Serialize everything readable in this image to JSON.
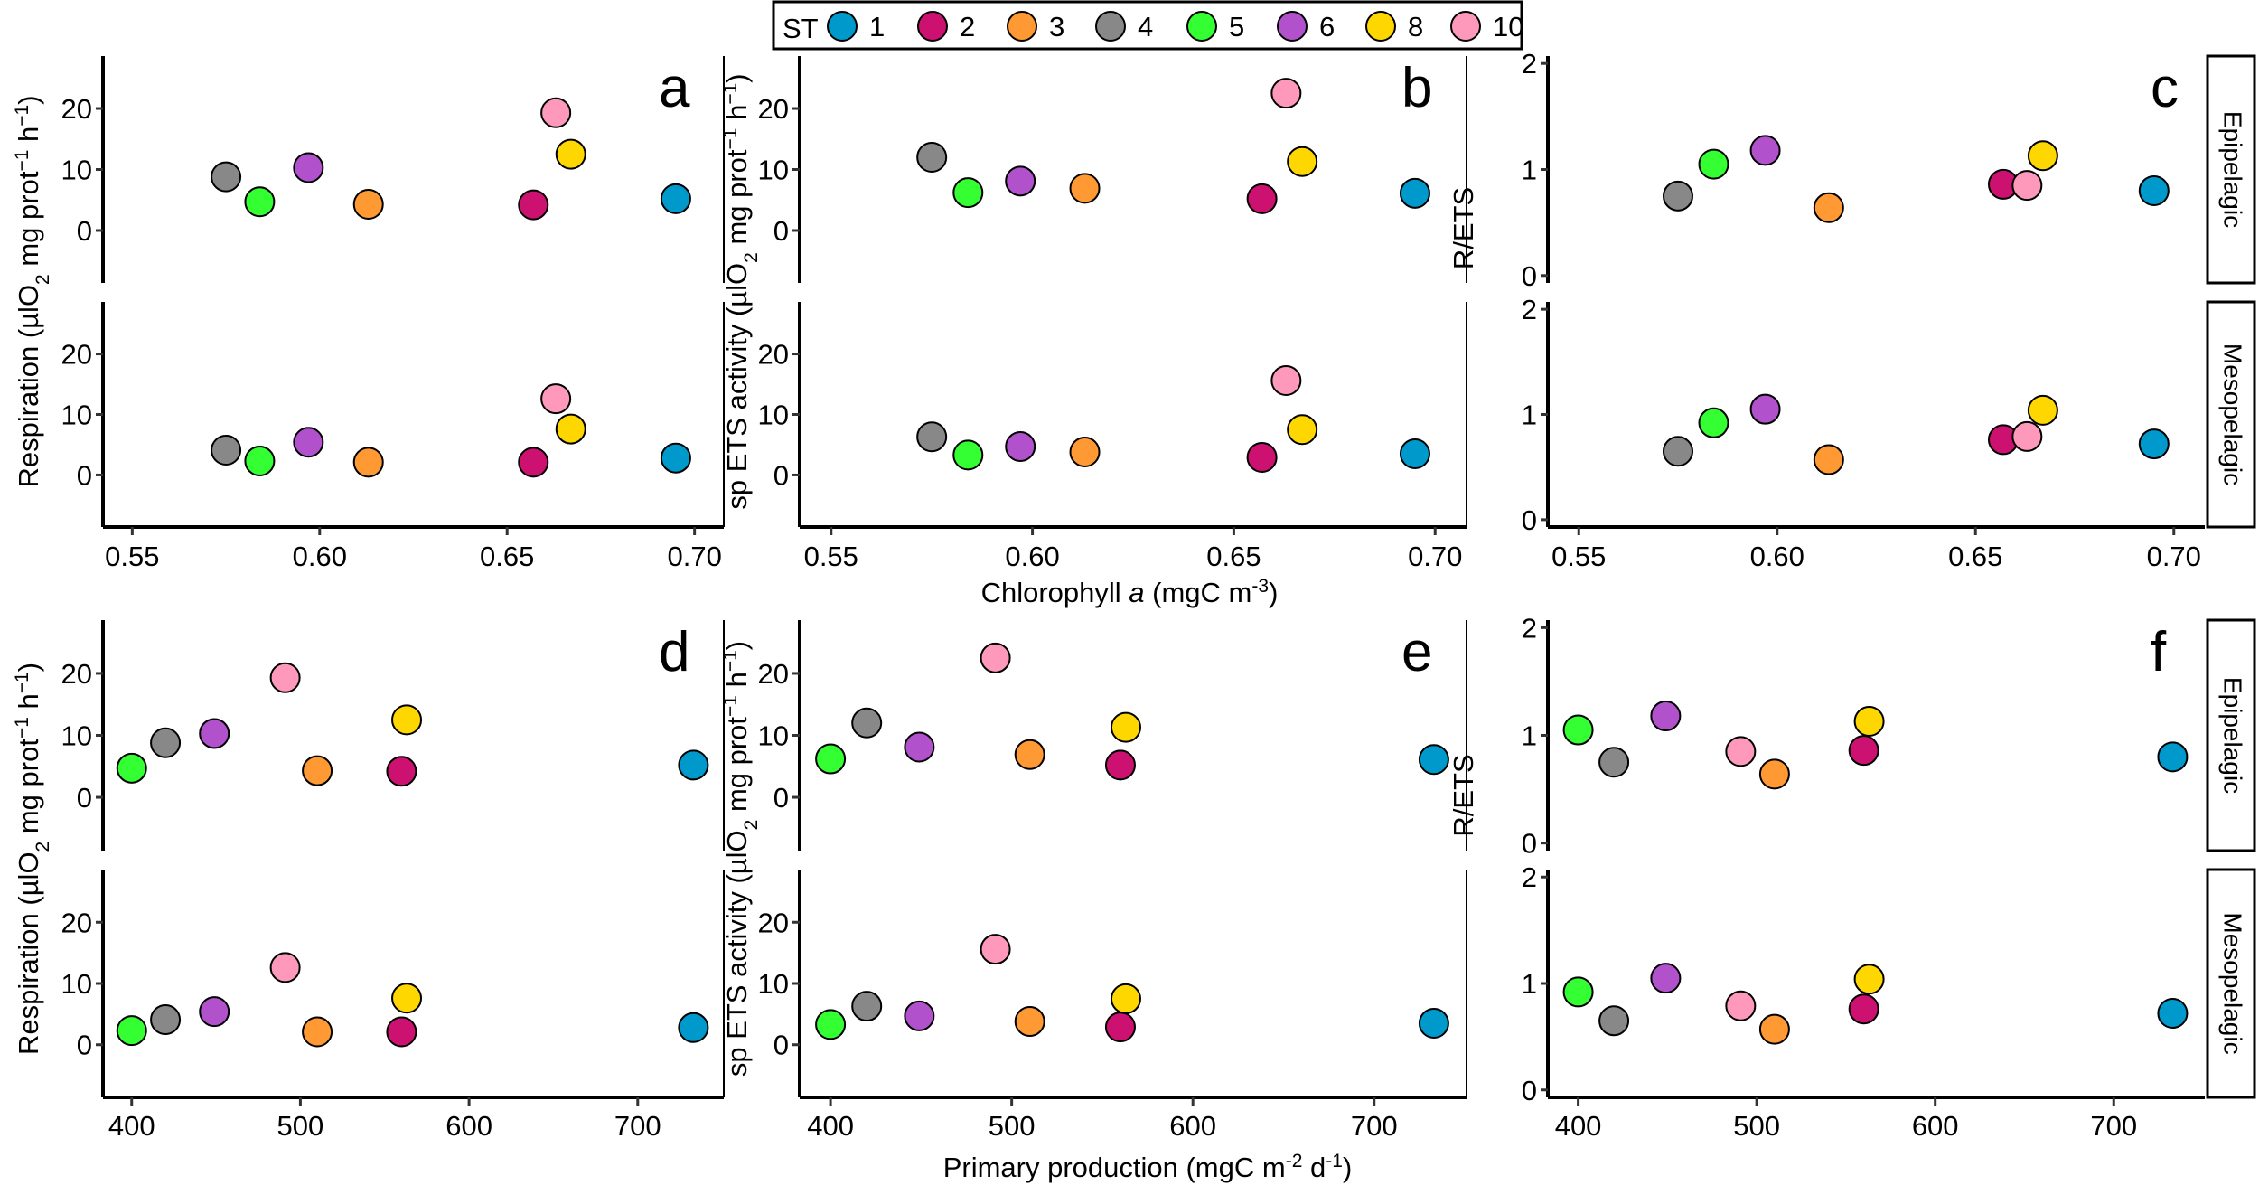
{
  "legend": {
    "title": "ST",
    "items": [
      {
        "label": "1",
        "color": "#0099CC"
      },
      {
        "label": "2",
        "color": "#CC1170"
      },
      {
        "label": "3",
        "color": "#FF9933"
      },
      {
        "label": "4",
        "color": "#888888"
      },
      {
        "label": "5",
        "color": "#33FF33"
      },
      {
        "label": "6",
        "color": "#B152CC"
      },
      {
        "label": "8",
        "color": "#FFD700"
      },
      {
        "label": "10",
        "color": "#FF99BB"
      }
    ]
  },
  "facet_labels": [
    "Epipelagic",
    "Mesopelagic"
  ],
  "x_titles": {
    "chl": [
      "Chlorophyll ",
      "a",
      " (mgC m",
      "-3",
      ")"
    ],
    "pp": [
      "Primary production (mgC m",
      "-2",
      " d",
      "-1",
      ")"
    ]
  },
  "y_titles": {
    "resp": [
      "Respiration (µlO",
      "2",
      " mg prot",
      "−1",
      " h",
      "−1",
      ")"
    ],
    "ets": [
      "sp ETS activity (µlO",
      "2",
      " mg prot",
      "−1",
      " h",
      "−1",
      ")"
    ],
    "ratio": [
      "R/ETS"
    ]
  },
  "chart_data": {
    "type": "scatter",
    "stations": [
      "1",
      "2",
      "3",
      "4",
      "5",
      "6",
      "8",
      "10"
    ],
    "x": {
      "chl": {
        "values": [
          0.695,
          0.657,
          0.613,
          0.575,
          0.584,
          0.597,
          0.667,
          0.663
        ],
        "range": [
          0.5422,
          0.7078
        ],
        "ticks": [
          "0.55",
          "0.60",
          "0.65",
          "0.70"
        ]
      },
      "pp": {
        "values": [
          733,
          560,
          510,
          420,
          400,
          449,
          563,
          491
        ],
        "range": [
          383,
          751
        ],
        "ticks": [
          "400",
          "500",
          "600",
          "700"
        ]
      }
    },
    "y": {
      "resp": {
        "range": [
          -8.6,
          28.6
        ],
        "ticks": [
          "0",
          "10",
          "20"
        ],
        "Epipelagic": [
          5.2,
          4.2,
          4.3,
          8.8,
          4.7,
          10.3,
          12.5,
          19.3
        ],
        "Mesopelagic": [
          2.8,
          2.1,
          2.1,
          4.1,
          2.3,
          5.4,
          7.6,
          12.6
        ]
      },
      "ets": {
        "range": [
          -8.6,
          28.6
        ],
        "ticks": [
          "0",
          "10",
          "20"
        ],
        "Epipelagic": [
          6.1,
          5.2,
          6.9,
          12.0,
          6.2,
          8.1,
          11.3,
          22.5
        ],
        "Mesopelagic": [
          3.5,
          2.9,
          3.8,
          6.3,
          3.3,
          4.7,
          7.5,
          15.6
        ]
      },
      "ratio": {
        "range": [
          -0.07,
          2.07
        ],
        "ticks": [
          "0",
          "1",
          "2"
        ],
        "Epipelagic": [
          0.8,
          0.86,
          0.64,
          0.75,
          1.05,
          1.18,
          1.13,
          0.85
        ],
        "Mesopelagic": [
          0.72,
          0.76,
          0.57,
          0.65,
          0.92,
          1.05,
          1.04,
          0.79
        ]
      }
    },
    "panels": [
      {
        "letter": "a",
        "x": "chl",
        "y": "resp"
      },
      {
        "letter": "b",
        "x": "chl",
        "y": "ets"
      },
      {
        "letter": "c",
        "x": "chl",
        "y": "ratio"
      },
      {
        "letter": "d",
        "x": "pp",
        "y": "resp"
      },
      {
        "letter": "e",
        "x": "pp",
        "y": "ets"
      },
      {
        "letter": "f",
        "x": "pp",
        "y": "ratio"
      }
    ]
  }
}
